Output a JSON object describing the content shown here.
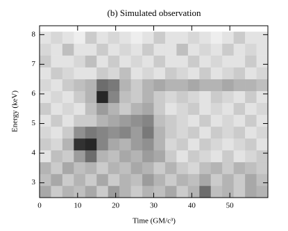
{
  "chart_data": {
    "type": "heatmap",
    "title": "(b) Simulated observation",
    "x_label": "Time (GM/c³)",
    "y_label": "Energy (keV)",
    "xlim": [
      0,
      60
    ],
    "ylim": [
      2.5,
      8.3
    ],
    "xticks": [
      0,
      10,
      20,
      30,
      40,
      50
    ],
    "yticks": [
      3,
      4,
      5,
      6,
      7,
      8
    ],
    "x": [
      1.5,
      4.5,
      7.5,
      10.5,
      13.5,
      16.5,
      19.5,
      22.5,
      25.5,
      28.5,
      31.5,
      34.5,
      37.5,
      40.5,
      43.5,
      46.5,
      49.5,
      52.5,
      55.5,
      58.5
    ],
    "y": [
      2.7,
      3.1,
      3.5,
      3.9,
      4.3,
      4.7,
      5.1,
      5.5,
      5.9,
      6.3,
      6.7,
      7.1,
      7.5,
      7.9
    ],
    "values": [
      [
        0.35,
        0.2,
        0.3,
        0.25,
        0.35,
        0.2,
        0.4,
        0.3,
        0.2,
        0.3,
        0.25,
        0.35,
        0.2,
        0.3,
        0.6,
        0.25,
        0.3,
        0.2,
        0.35,
        0.3
      ],
      [
        0.25,
        0.35,
        0.2,
        0.3,
        0.2,
        0.35,
        0.2,
        0.3,
        0.25,
        0.4,
        0.3,
        0.2,
        0.3,
        0.25,
        0.35,
        0.2,
        0.3,
        0.2,
        0.35,
        0.25
      ],
      [
        0.3,
        0.2,
        0.35,
        0.25,
        0.3,
        0.2,
        0.3,
        0.25,
        0.35,
        0.3,
        0.2,
        0.3,
        0.2,
        0.15,
        0.25,
        0.3,
        0.2,
        0.3,
        0.25,
        0.2
      ],
      [
        0.1,
        0.25,
        0.2,
        0.4,
        0.6,
        0.3,
        0.25,
        0.35,
        0.3,
        0.4,
        0.35,
        0.2,
        0.1,
        0.2,
        0.15,
        0.1,
        0.2,
        0.1,
        0.15,
        0.2
      ],
      [
        0.2,
        0.15,
        0.3,
        0.85,
        0.9,
        0.5,
        0.35,
        0.3,
        0.4,
        0.45,
        0.3,
        0.15,
        0.2,
        0.1,
        0.2,
        0.15,
        0.1,
        0.15,
        0.2,
        0.1
      ],
      [
        0.15,
        0.1,
        0.2,
        0.45,
        0.55,
        0.5,
        0.45,
        0.5,
        0.4,
        0.55,
        0.3,
        0.2,
        0.15,
        0.2,
        0.1,
        0.2,
        0.15,
        0.2,
        0.1,
        0.15
      ],
      [
        0.1,
        0.2,
        0.1,
        0.2,
        0.2,
        0.3,
        0.35,
        0.4,
        0.45,
        0.5,
        0.25,
        0.2,
        0.15,
        0.1,
        0.2,
        0.1,
        0.15,
        0.1,
        0.2,
        0.1
      ],
      [
        0.2,
        0.1,
        0.15,
        0.1,
        0.25,
        0.4,
        0.3,
        0.2,
        0.3,
        0.35,
        0.2,
        0.1,
        0.15,
        0.2,
        0.1,
        0.15,
        0.1,
        0.2,
        0.1,
        0.15
      ],
      [
        0.1,
        0.15,
        0.1,
        0.2,
        0.3,
        0.9,
        0.5,
        0.25,
        0.2,
        0.3,
        0.2,
        0.15,
        0.2,
        0.15,
        0.1,
        0.2,
        0.15,
        0.1,
        0.2,
        0.1
      ],
      [
        0.15,
        0.1,
        0.2,
        0.25,
        0.3,
        0.6,
        0.55,
        0.3,
        0.2,
        0.3,
        0.35,
        0.3,
        0.3,
        0.35,
        0.3,
        0.3,
        0.35,
        0.3,
        0.3,
        0.25
      ],
      [
        0.1,
        0.2,
        0.15,
        0.1,
        0.1,
        0.2,
        0.15,
        0.25,
        0.1,
        0.15,
        0.1,
        0.2,
        0.15,
        0.1,
        0.2,
        0.1,
        0.15,
        0.2,
        0.1,
        0.15
      ],
      [
        0.2,
        0.1,
        0.1,
        0.15,
        0.25,
        0.1,
        0.2,
        0.1,
        0.15,
        0.1,
        0.2,
        0.1,
        0.1,
        0.2,
        0.1,
        0.15,
        0.1,
        0.1,
        0.2,
        0.1
      ],
      [
        0.15,
        0.1,
        0.25,
        0.1,
        0.1,
        0.2,
        0.1,
        0.15,
        0.1,
        0.2,
        0.1,
        0.1,
        0.25,
        0.1,
        0.15,
        0.1,
        0.2,
        0.1,
        0.15,
        0.1
      ],
      [
        0.1,
        0.15,
        0.1,
        0.05,
        0.2,
        0.1,
        0.15,
        0.1,
        0.05,
        0.1,
        0.2,
        0.1,
        0.1,
        0.15,
        0.1,
        0.05,
        0.1,
        0.2,
        0.1,
        0.1
      ]
    ]
  }
}
